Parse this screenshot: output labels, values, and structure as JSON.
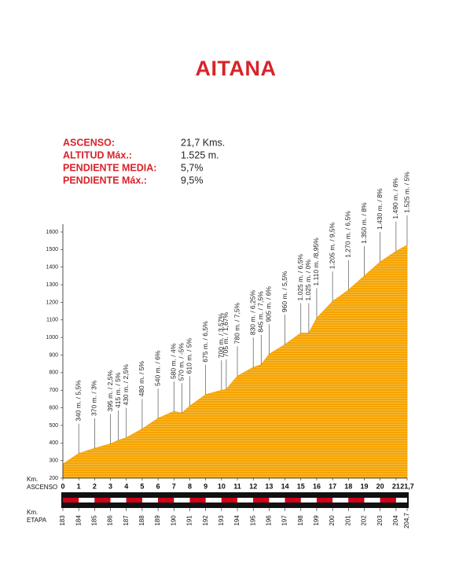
{
  "title": "AITANA",
  "stats": [
    {
      "label": "ASCENSO:",
      "value": "21,7 Kms."
    },
    {
      "label": "ALTITUD Máx.:",
      "value": "1.525 m."
    },
    {
      "label": "PENDIENTE MEDIA:",
      "value": "5,7%"
    },
    {
      "label": "PENDIENTE Máx.:",
      "value": "9,5%"
    }
  ],
  "chart_data": {
    "type": "area",
    "color": "#f5a300",
    "x": [
      0,
      1,
      2,
      3,
      3.5,
      4,
      5,
      6,
      7,
      7.5,
      8,
      9,
      10,
      10.3,
      11,
      12,
      12.5,
      13,
      14,
      15,
      15.5,
      16,
      17,
      18,
      19,
      20,
      21,
      21.7
    ],
    "values": [
      280,
      340,
      370,
      395,
      415,
      430,
      480,
      540,
      580,
      570,
      610,
      675,
      700,
      705,
      780,
      830,
      845,
      905,
      960,
      1025,
      1025,
      1110,
      1205,
      1270,
      1350,
      1430,
      1490,
      1525
    ],
    "value_labels": [
      null,
      "340 m. / 5,5%",
      "370 m. / 3%",
      "395 m. / 2,5%",
      "415 m. / 5%",
      "430 m. / 2,5%",
      "480 m. / 5%",
      "540 m. / 6%",
      "580 m. / 4%",
      "570 m. / -5%",
      "610 m. / 5%",
      "675 m. / 6,5%",
      "700 m. / 3,57%",
      "705 m. / 1,67%",
      "780 m. / 7,5%",
      "830 m. / 6,25%",
      "845 m. / 7,5%",
      "905 m. / 6%",
      "960 m. / 5,5%",
      "1.025 m. / 6,5%",
      "1.025 m. / 0%",
      "1.110 m. /8,95%",
      "1.205 m. / 9,5%",
      "1.270 m. / 6,5%",
      "1.350 m. / 8%",
      "1.430 m. / 8%",
      "1.490 m. / 6%",
      "1.525 m. / 5%"
    ],
    "xlim": [
      0,
      21.7
    ],
    "xticks": [
      0,
      1,
      2,
      3,
      4,
      5,
      6,
      7,
      8,
      9,
      10,
      11,
      12,
      13,
      14,
      15,
      16,
      17,
      18,
      19,
      20,
      21,
      {
        "value": 21.7,
        "label": "21,7"
      }
    ],
    "xlabel": [
      "Km.",
      "ASCENSO"
    ],
    "x2lim": [
      183,
      204.7
    ],
    "x2ticks": [
      183,
      184,
      185,
      186,
      187,
      188,
      189,
      190,
      191,
      192,
      193,
      194,
      195,
      196,
      197,
      198,
      199,
      200,
      201,
      202,
      203,
      204,
      {
        "value": 204.7,
        "label": "204,7"
      }
    ],
    "x2label": [
      "Km.",
      "ETAPA"
    ],
    "ylim": [
      200,
      1600
    ],
    "yticks": [
      200,
      300,
      400,
      500,
      600,
      700,
      800,
      900,
      1000,
      1100,
      1200,
      1300,
      1400,
      1500,
      1600
    ]
  }
}
